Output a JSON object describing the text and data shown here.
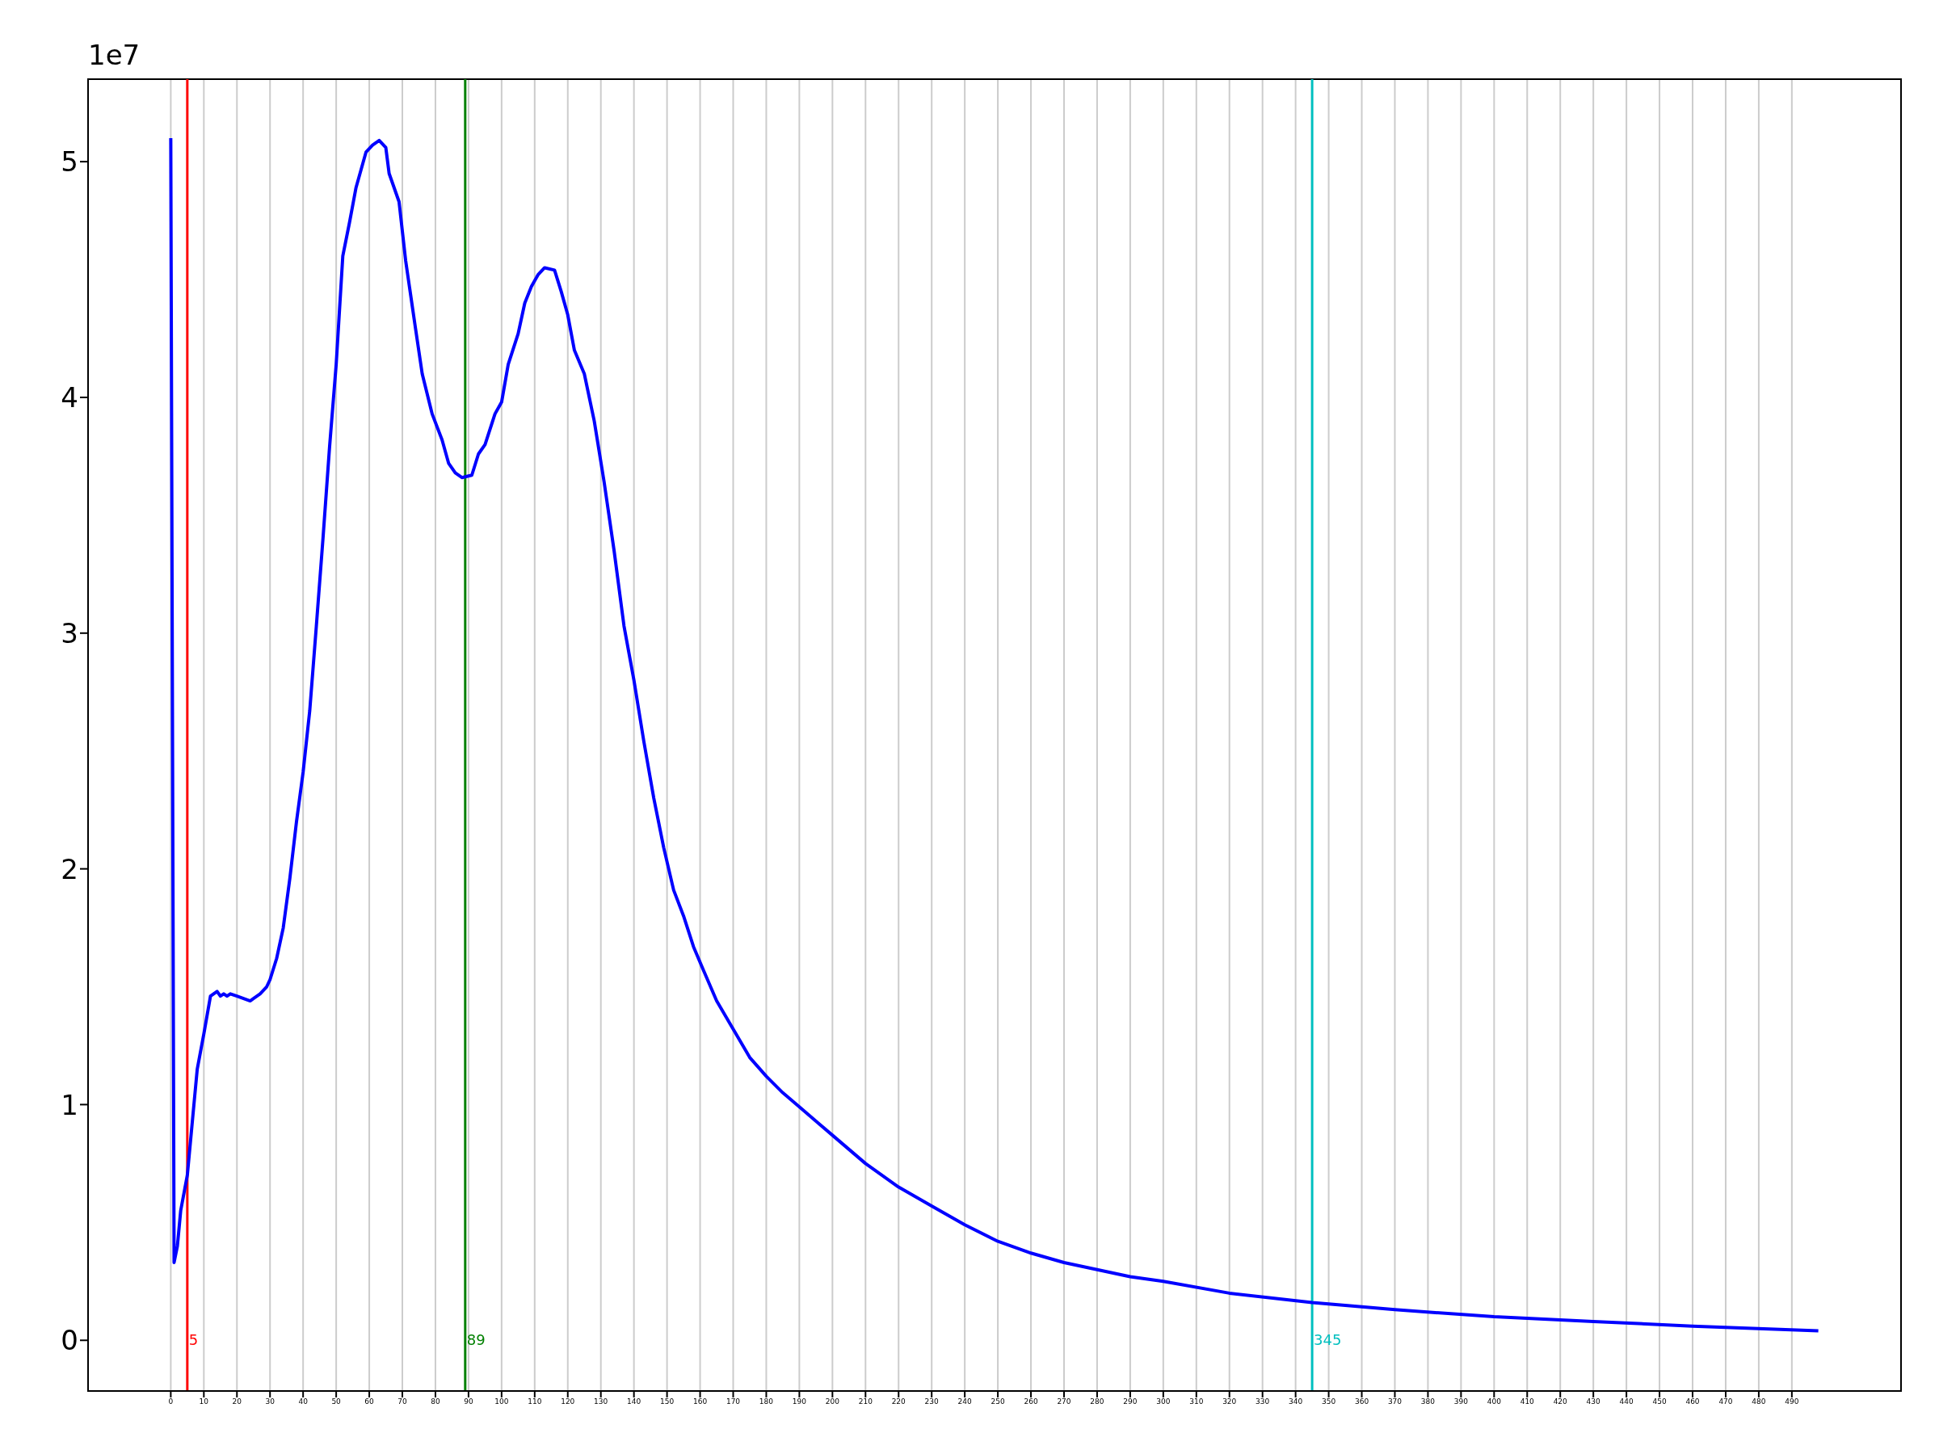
{
  "chart_data": {
    "type": "line",
    "annotations": [
      "1e7"
    ],
    "xlim": [
      -25,
      523
    ],
    "ylim": [
      -0.215,
      5.35
    ],
    "xticks": [
      0,
      10,
      20,
      30,
      40,
      50,
      60,
      70,
      80,
      90,
      100,
      110,
      120,
      130,
      140,
      150,
      160,
      170,
      180,
      190,
      200,
      210,
      220,
      230,
      240,
      250,
      260,
      270,
      280,
      290,
      300,
      310,
      320,
      330,
      340,
      350,
      360,
      370,
      380,
      390,
      400,
      410,
      420,
      430,
      440,
      450,
      460,
      470,
      480,
      490
    ],
    "yticks": [
      0,
      1,
      2,
      3,
      4,
      5
    ],
    "grid": "x",
    "marker": "none",
    "line_style": "solid",
    "ref_lines": [
      {
        "axis": "x",
        "value": 5,
        "label": "5",
        "color": "#ff0000"
      },
      {
        "axis": "x",
        "value": 89,
        "label": "89",
        "color": "#008000"
      },
      {
        "axis": "x",
        "value": 345,
        "label": "345",
        "color": "#00bfbf"
      }
    ],
    "series": [
      {
        "color": "#0000ff",
        "x": [
          0,
          1,
          2,
          3,
          5,
          7,
          8,
          10,
          12,
          14,
          15,
          16,
          17,
          18,
          20,
          22,
          24,
          25,
          27,
          29,
          30,
          32,
          34,
          36,
          38,
          40,
          42,
          44,
          46,
          48,
          50,
          52,
          54,
          56,
          59,
          61,
          63,
          65,
          66,
          69,
          71,
          74,
          76,
          79,
          82,
          84,
          86,
          88,
          91,
          93,
          95,
          98,
          100,
          102,
          105,
          107,
          109,
          111,
          113,
          116,
          118,
          120,
          122,
          125,
          128,
          131,
          134,
          137,
          140,
          143,
          146,
          149,
          152,
          155,
          158,
          161,
          165,
          170,
          175,
          180,
          185,
          190,
          200,
          210,
          220,
          230,
          240,
          250,
          260,
          270,
          280,
          290,
          300,
          320,
          345,
          370,
          400,
          430,
          460,
          498
        ],
        "values": [
          5.1,
          0.33,
          0.4,
          0.55,
          0.7,
          1.0,
          1.15,
          1.3,
          1.46,
          1.48,
          1.46,
          1.47,
          1.46,
          1.47,
          1.46,
          1.45,
          1.44,
          1.45,
          1.47,
          1.5,
          1.53,
          1.62,
          1.75,
          1.96,
          2.2,
          2.41,
          2.67,
          3.03,
          3.4,
          3.79,
          4.14,
          4.6,
          4.74,
          4.89,
          5.04,
          5.07,
          5.09,
          5.06,
          4.95,
          4.83,
          4.58,
          4.29,
          4.1,
          3.93,
          3.82,
          3.72,
          3.68,
          3.66,
          3.67,
          3.76,
          3.8,
          3.93,
          3.98,
          4.14,
          4.27,
          4.4,
          4.47,
          4.52,
          4.55,
          4.54,
          4.45,
          4.35,
          4.2,
          4.1,
          3.9,
          3.64,
          3.35,
          3.03,
          2.8,
          2.54,
          2.3,
          2.09,
          1.91,
          1.8,
          1.67,
          1.57,
          1.44,
          1.32,
          1.2,
          1.12,
          1.05,
          0.99,
          0.87,
          0.75,
          0.65,
          0.57,
          0.49,
          0.42,
          0.37,
          0.33,
          0.3,
          0.27,
          0.25,
          0.2,
          0.16,
          0.13,
          0.1,
          0.08,
          0.06,
          0.04
        ]
      }
    ]
  }
}
